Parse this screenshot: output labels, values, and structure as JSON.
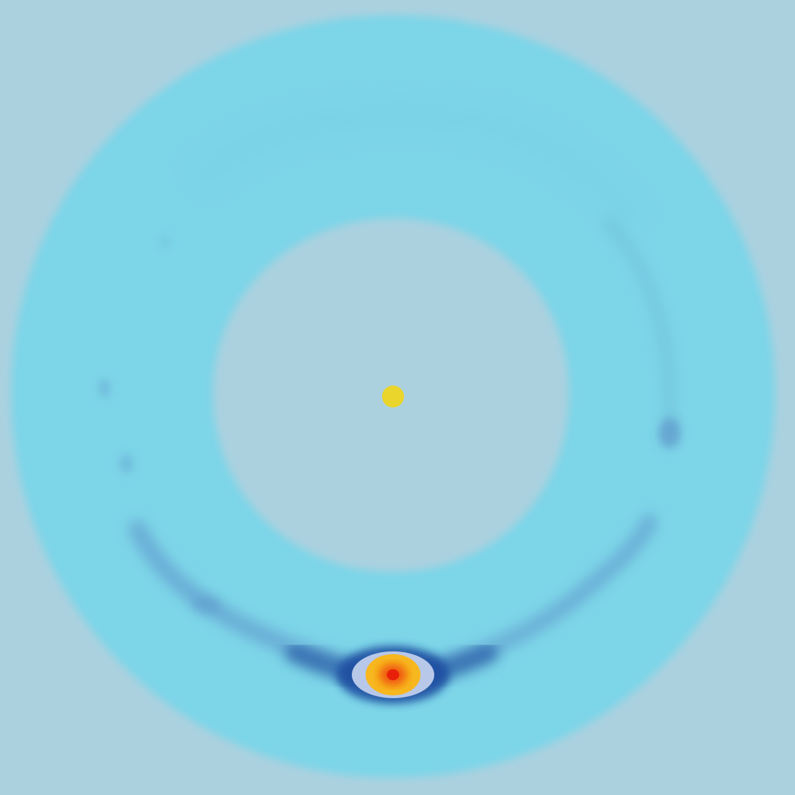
{
  "image": {
    "subject": "protoplanetary-disk-simulation",
    "colors": {
      "background": "#abd1df",
      "ring": "#7dd5e8",
      "ring_inner_shade": "#76d0e4",
      "gap": "#abd1df",
      "wake_dark": "#2c5fa8",
      "wake_mid": "#5a8fc8",
      "wake_light": "#6fbad8",
      "planet_halo": "#1e4ea0",
      "planet_ring": "#b8c8e8",
      "planet_mid": "#f7b71e",
      "planet_core": "#f05a10",
      "planet_center": "#e8200a",
      "star": "#ead52c"
    },
    "elements": [
      "central-star",
      "dust-ring",
      "inner-gap",
      "embedded-planet",
      "spiral-wake",
      "dust-clumps"
    ]
  }
}
